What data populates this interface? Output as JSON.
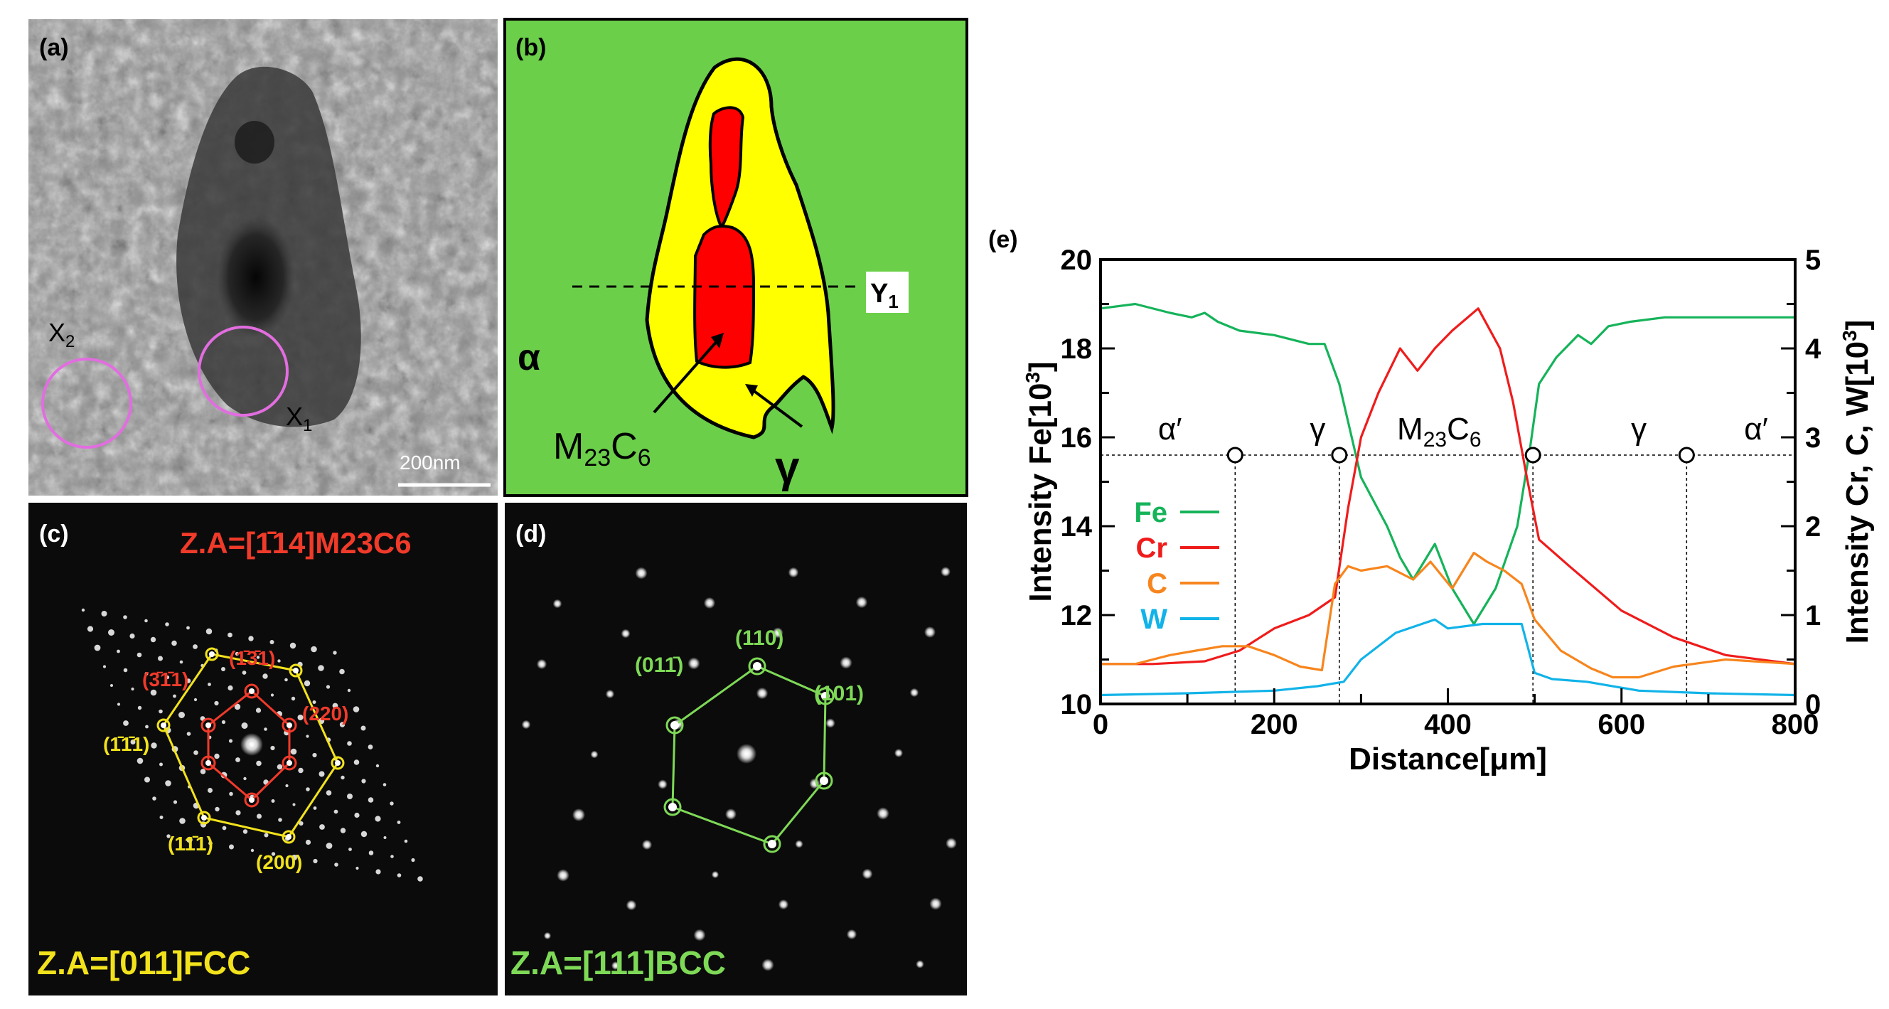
{
  "panels": {
    "a": {
      "label": "(a)",
      "x1": "X",
      "x1_sub": "1",
      "x2": "X",
      "x2_sub": "2",
      "scale_bar": "200nm"
    },
    "b": {
      "label": "(b)",
      "alpha": "α",
      "gamma": "γ",
      "y1": "Y",
      "y1_sub": "1",
      "m23c6_M": "M",
      "m23c6_23": "23",
      "m23c6_C": "C",
      "m23c6_6": "6"
    },
    "c": {
      "label": "(c)",
      "za_top": "Z.A=[1̄14]M23C6",
      "za_bottom": "Z.A=[011]FCC",
      "red_labels": [
        "(3̄1̄1)",
        "(1̄3̄1)",
        "(220)"
      ],
      "yellow_labels": [
        "(1̄1̄1)",
        "(11̄1)",
        "(200)"
      ]
    },
    "d": {
      "label": "(d)",
      "za_bottom": "Z.A=[111]BCC",
      "green_labels": [
        "(011̄)",
        "(110)",
        "(101)"
      ]
    },
    "e": {
      "label": "(e)"
    }
  },
  "colors": {
    "fe": "#16b35a",
    "cr": "#ef1c1c",
    "c": "#f7851d",
    "w": "#11b3e8",
    "panel_b_bg": "#6ccf4a",
    "panel_b_yellow": "#ffff00",
    "panel_b_red": "#ff0000",
    "yellow_label": "#f2e21c",
    "red_label": "#f03a2a",
    "green_label": "#7ed957"
  },
  "chart_data": {
    "type": "line",
    "xlabel": "Distance[μm]",
    "ylabel_left": "Intensity Fe[10",
    "ylabel_left_sup": "3",
    "ylabel_left_end": "]",
    "ylabel_right": "Intensity Cr, C, W[10",
    "ylabel_right_sup": "3",
    "ylabel_right_end": "]",
    "xlim": [
      0,
      800
    ],
    "ylim_left": [
      10,
      20
    ],
    "ylim_right": [
      0,
      5
    ],
    "x_ticks": [
      "0",
      "200",
      "400",
      "600",
      "800"
    ],
    "y_left_ticks": [
      "10",
      "12",
      "14",
      "16",
      "18",
      "20"
    ],
    "y_right_ticks": [
      "0",
      "1",
      "2",
      "3",
      "4",
      "5"
    ],
    "reference_level_right": 2.8,
    "boundary_x": [
      155,
      275,
      498,
      675
    ],
    "region_labels": [
      "α′",
      "γ",
      "M",
      "γ",
      "α′"
    ],
    "region_m23c6": {
      "M": "M",
      "s1": "23",
      "C": "C",
      "s2": "6"
    },
    "legend": [
      "Fe",
      "Cr",
      "C",
      "W"
    ],
    "series": [
      {
        "name": "Fe",
        "axis": "left",
        "x": [
          0,
          40,
          80,
          105,
          120,
          135,
          160,
          200,
          240,
          258,
          275,
          300,
          330,
          345,
          360,
          385,
          405,
          430,
          455,
          480,
          495,
          505,
          525,
          550,
          565,
          585,
          610,
          650,
          700,
          750,
          790,
          800
        ],
        "y": [
          18.9,
          19.0,
          18.8,
          18.7,
          18.8,
          18.6,
          18.4,
          18.3,
          18.1,
          18.1,
          17.2,
          15.1,
          14.0,
          13.3,
          12.8,
          13.6,
          12.6,
          11.8,
          12.6,
          14.0,
          15.8,
          17.2,
          17.8,
          18.3,
          18.1,
          18.5,
          18.6,
          18.7,
          18.7,
          18.7,
          18.7,
          18.7
        ]
      },
      {
        "name": "Cr",
        "axis": "right",
        "x": [
          0,
          60,
          120,
          160,
          200,
          240,
          270,
          285,
          300,
          320,
          345,
          365,
          385,
          405,
          435,
          460,
          475,
          490,
          505,
          540,
          600,
          660,
          720,
          800
        ],
        "y": [
          0.45,
          0.45,
          0.48,
          0.6,
          0.85,
          1.0,
          1.2,
          2.2,
          3.0,
          3.5,
          4.0,
          3.75,
          4.0,
          4.2,
          4.45,
          4.0,
          3.4,
          2.6,
          1.85,
          1.55,
          1.05,
          0.75,
          0.55,
          0.45
        ]
      },
      {
        "name": "C",
        "axis": "right",
        "x": [
          0,
          40,
          80,
          110,
          140,
          170,
          200,
          230,
          255,
          270,
          285,
          300,
          330,
          360,
          380,
          405,
          430,
          445,
          465,
          485,
          500,
          530,
          565,
          590,
          620,
          660,
          720,
          800
        ],
        "y": [
          0.45,
          0.45,
          0.55,
          0.6,
          0.65,
          0.65,
          0.55,
          0.42,
          0.38,
          1.35,
          1.55,
          1.5,
          1.55,
          1.4,
          1.6,
          1.3,
          1.7,
          1.6,
          1.5,
          1.35,
          0.95,
          0.6,
          0.4,
          0.3,
          0.3,
          0.42,
          0.5,
          0.45
        ]
      },
      {
        "name": "W",
        "axis": "right",
        "x": [
          0,
          100,
          200,
          250,
          280,
          300,
          340,
          370,
          385,
          400,
          440,
          470,
          485,
          500,
          520,
          560,
          620,
          700,
          800
        ],
        "y": [
          0.1,
          0.12,
          0.15,
          0.2,
          0.25,
          0.5,
          0.8,
          0.9,
          0.95,
          0.85,
          0.9,
          0.9,
          0.9,
          0.35,
          0.28,
          0.25,
          0.15,
          0.12,
          0.1
        ]
      }
    ]
  }
}
